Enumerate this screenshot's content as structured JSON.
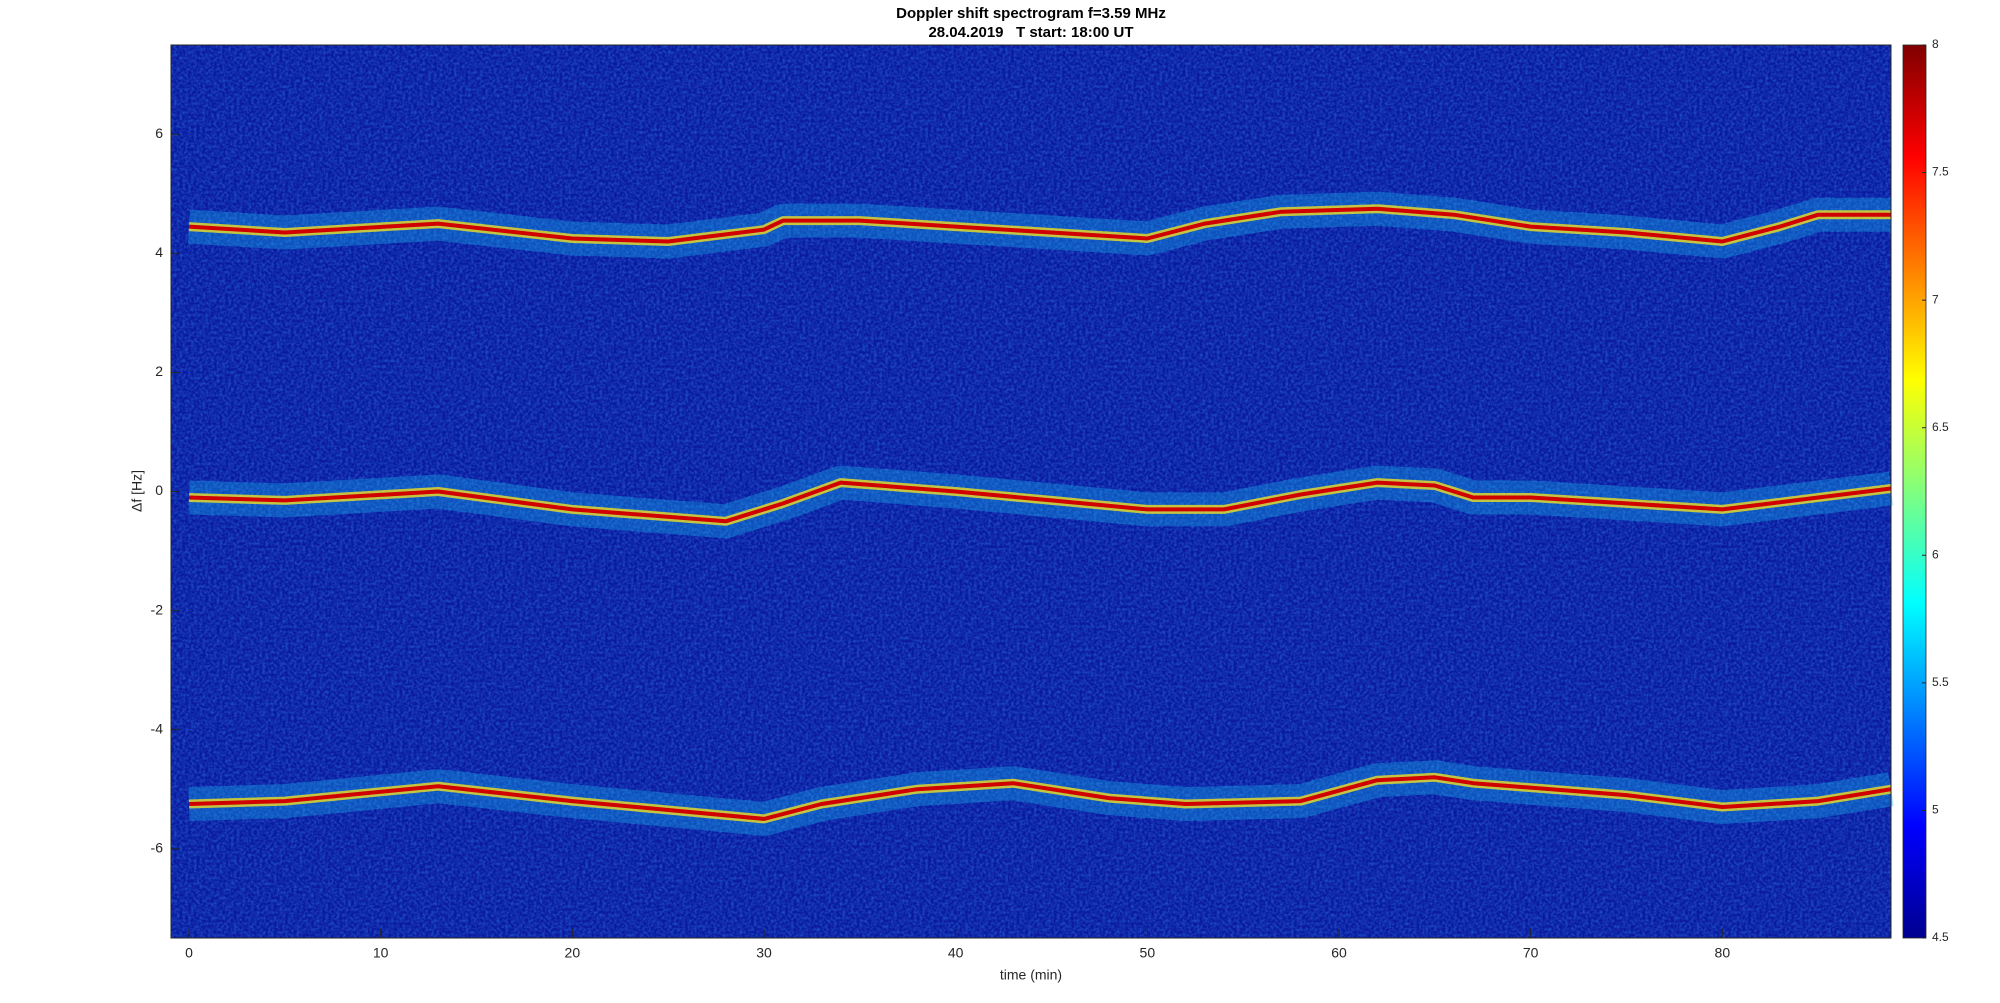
{
  "chart_data": {
    "type": "spectrogram",
    "title": "Doppler shift spectrogram f=3.59 MHz",
    "subtitle": "28.04.2019   T start: 18:00 UT",
    "x_label": "time (min)",
    "y_label": "Δf [Hz]",
    "xlim": [
      -0.94,
      88.8
    ],
    "xticks": [
      0,
      10,
      20,
      30,
      40,
      50,
      60,
      70,
      80
    ],
    "ylim": [
      -7.5,
      7.5
    ],
    "yticks": [
      -6,
      -4,
      -2,
      0,
      2,
      4,
      6
    ],
    "colormap": "jet",
    "clim": [
      4.5,
      8
    ],
    "cticks": [
      4.5,
      5,
      5.5,
      6,
      6.5,
      7,
      7.5,
      8
    ],
    "series": [
      {
        "color": "#d00000",
        "x": [
          0,
          5,
          13,
          20,
          25,
          30,
          31,
          35,
          40,
          45,
          50,
          53,
          57,
          62,
          66,
          70,
          75,
          80,
          83,
          85,
          88.8
        ],
        "values": [
          4.45,
          4.35,
          4.5,
          4.25,
          4.2,
          4.4,
          4.55,
          4.55,
          4.45,
          4.35,
          4.25,
          4.5,
          4.7,
          4.75,
          4.65,
          4.45,
          4.35,
          4.2,
          4.45,
          4.65,
          4.65
        ]
      },
      {
        "color": "#d00000",
        "x": [
          0,
          5,
          13,
          20,
          28,
          31,
          34,
          40,
          45,
          50,
          54,
          58,
          62,
          65,
          67,
          70,
          75,
          80,
          85,
          88.8
        ],
        "values": [
          -0.1,
          -0.15,
          0.0,
          -0.3,
          -0.5,
          -0.2,
          0.15,
          0.0,
          -0.15,
          -0.3,
          -0.3,
          -0.05,
          0.15,
          0.1,
          -0.1,
          -0.1,
          -0.2,
          -0.3,
          -0.1,
          0.05
        ]
      },
      {
        "color": "#d00000",
        "x": [
          0,
          5,
          13,
          20,
          25,
          30,
          33,
          38,
          43,
          48,
          52,
          58,
          62,
          65,
          67,
          75,
          80,
          85,
          88.8
        ],
        "values": [
          -5.25,
          -5.2,
          -4.95,
          -5.2,
          -5.35,
          -5.5,
          -5.25,
          -5.0,
          -4.9,
          -5.15,
          -5.25,
          -5.2,
          -4.85,
          -4.8,
          -4.9,
          -5.1,
          -5.3,
          -5.2,
          -5.0
        ]
      }
    ]
  }
}
